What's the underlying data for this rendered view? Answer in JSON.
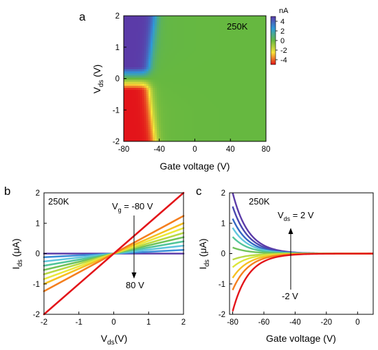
{
  "chart_data": [
    {
      "panel": "a",
      "type": "heatmap",
      "annotation": "250K",
      "xlabel": "Gate voltage (V)",
      "ylabel_main": "V",
      "ylabel_sub": "ds",
      "ylabel_unit": " (V)",
      "xlim": [
        -80,
        80
      ],
      "ylim": [
        -2,
        2
      ],
      "xticks": [
        "-80",
        "-40",
        "0",
        "40",
        "80"
      ],
      "yticks": [
        "-2",
        "-1",
        "0",
        "1",
        "2"
      ],
      "colorbar": {
        "unit": "nA",
        "ticks": [
          "4",
          "2",
          "0",
          "-2",
          "-4"
        ],
        "range": [
          -5,
          5
        ],
        "colors": [
          "#e3141a",
          "#f7e23a",
          "#66b840",
          "#2f9ad8",
          "#5b3ba8"
        ]
      },
      "description_values": {
        "positive_vds_current_nA": 5,
        "negative_vds_current_nA": -5,
        "gate_transition_V": -45
      }
    },
    {
      "panel": "b",
      "type": "line",
      "annotation": "250K",
      "vg_label_main": "V",
      "vg_label_sub": "g",
      "vg_label_value": " = -80 V",
      "vg_end_label": "80 V",
      "xlabel_main": "V",
      "xlabel_sub": "ds",
      "xlabel_unit": "(V)",
      "ylabel_main": "I",
      "ylabel_sub": "ds",
      "ylabel_unit": " (μA)",
      "xlim": [
        -2,
        2
      ],
      "ylim": [
        -2,
        2
      ],
      "xticks": [
        "-2",
        "-1",
        "0",
        "1",
        "2"
      ],
      "yticks": [
        "-2",
        "-1",
        "0",
        "1",
        "2"
      ],
      "x": [
        -2,
        2
      ],
      "series": [
        {
          "slope_uA_per_V": 1.0,
          "color": "#e3141a"
        },
        {
          "slope_uA_per_V": 0.62,
          "color": "#f47f1f"
        },
        {
          "slope_uA_per_V": 0.5,
          "color": "#f6c022"
        },
        {
          "slope_uA_per_V": 0.42,
          "color": "#eae83a"
        },
        {
          "slope_uA_per_V": 0.34,
          "color": "#b8d944"
        },
        {
          "slope_uA_per_V": 0.27,
          "color": "#6fc25a"
        },
        {
          "slope_uA_per_V": 0.2,
          "color": "#52c59a"
        },
        {
          "slope_uA_per_V": 0.13,
          "color": "#61c6dd"
        },
        {
          "slope_uA_per_V": 0.06,
          "color": "#3d8fd8"
        },
        {
          "slope_uA_per_V": 0.0,
          "color": "#5b3ba8"
        }
      ]
    },
    {
      "panel": "c",
      "type": "line",
      "annotation": "250K",
      "vds_label_main": "V",
      "vds_label_sub": "ds",
      "vds_label_value": " = 2 V",
      "vds_end_label": "-2 V",
      "xlabel": "Gate voltage (V)",
      "ylabel_main": "I",
      "ylabel_sub": "ds",
      "ylabel_unit": " (μA)",
      "xlim": [
        -82,
        10
      ],
      "ylim": [
        -2,
        2
      ],
      "xticks": [
        "-80",
        "-60",
        "-40",
        "-20",
        "0"
      ],
      "yticks": [
        "-2",
        "-1",
        "0",
        "1",
        "2"
      ],
      "x_range": [
        -80,
        10
      ],
      "decay_length_V": 10,
      "series": [
        {
          "amplitude_uA": 2.0,
          "color": "#5b3ba8"
        },
        {
          "amplitude_uA": 1.55,
          "color": "#4a48b0"
        },
        {
          "amplitude_uA": 1.15,
          "color": "#3468c4"
        },
        {
          "amplitude_uA": 0.85,
          "color": "#61c6dd"
        },
        {
          "amplitude_uA": 0.55,
          "color": "#52c59a"
        },
        {
          "amplitude_uA": 0.2,
          "color": "#6fc25a"
        },
        {
          "amplitude_uA": -0.2,
          "color": "#b8d944"
        },
        {
          "amplitude_uA": -0.45,
          "color": "#dde53a"
        },
        {
          "amplitude_uA": -0.8,
          "color": "#f6c022"
        },
        {
          "amplitude_uA": -1.2,
          "color": "#f47f1f"
        },
        {
          "amplitude_uA": -1.9,
          "color": "#e3141a"
        }
      ]
    }
  ],
  "panel_letters": {
    "a": "a",
    "b": "b",
    "c": "c"
  }
}
